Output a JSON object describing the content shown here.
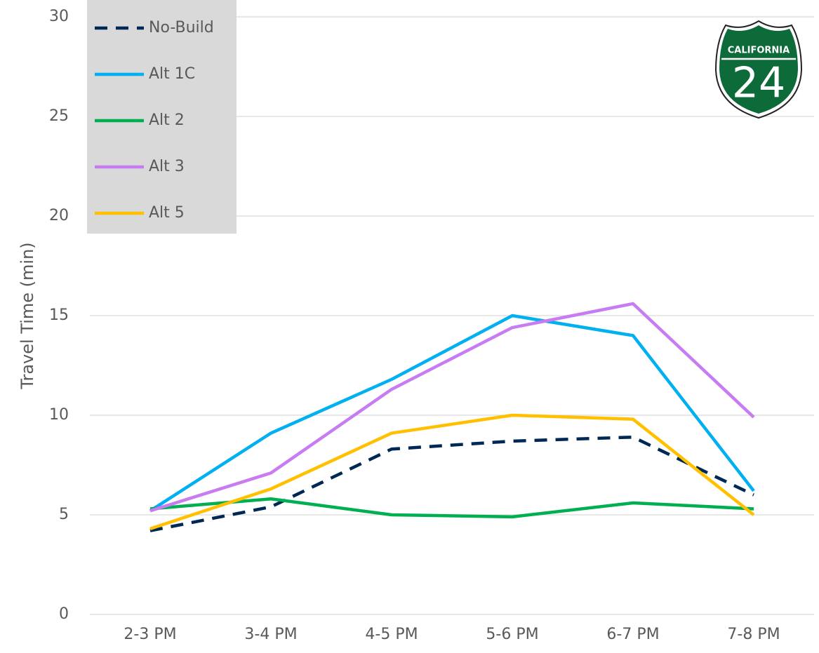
{
  "chart_data": {
    "type": "line",
    "y_label": "Travel Time (min)",
    "categories": [
      "2-3 PM",
      "3-4 PM",
      "4-5 PM",
      "5-6 PM",
      "6-7 PM",
      "7-8 PM"
    ],
    "series": [
      {
        "name": "No-Build",
        "color": "#002855",
        "dashed": true,
        "values": [
          4.2,
          5.4,
          8.3,
          8.7,
          8.9,
          6.0
        ]
      },
      {
        "name": "Alt 1C",
        "color": "#00b0f0",
        "values": [
          5.2,
          9.1,
          11.8,
          15.0,
          14.0,
          6.2
        ]
      },
      {
        "name": "Alt 2",
        "color": "#00b050",
        "values": [
          5.3,
          5.8,
          5.0,
          4.9,
          5.6,
          5.3
        ]
      },
      {
        "name": "Alt 3",
        "color": "#c77cf2",
        "values": [
          5.2,
          7.1,
          11.3,
          14.4,
          15.6,
          9.9
        ]
      },
      {
        "name": "Alt 5",
        "color": "#ffc000",
        "values": [
          4.3,
          6.3,
          9.1,
          10.0,
          9.8,
          5.0
        ]
      }
    ],
    "ylim": [
      0,
      30
    ],
    "yticks": [
      0,
      5,
      10,
      15,
      20,
      25,
      30
    ],
    "grid": true,
    "legend": "top-left",
    "shield": {
      "label": "CALIFORNIA",
      "number": "24"
    }
  }
}
